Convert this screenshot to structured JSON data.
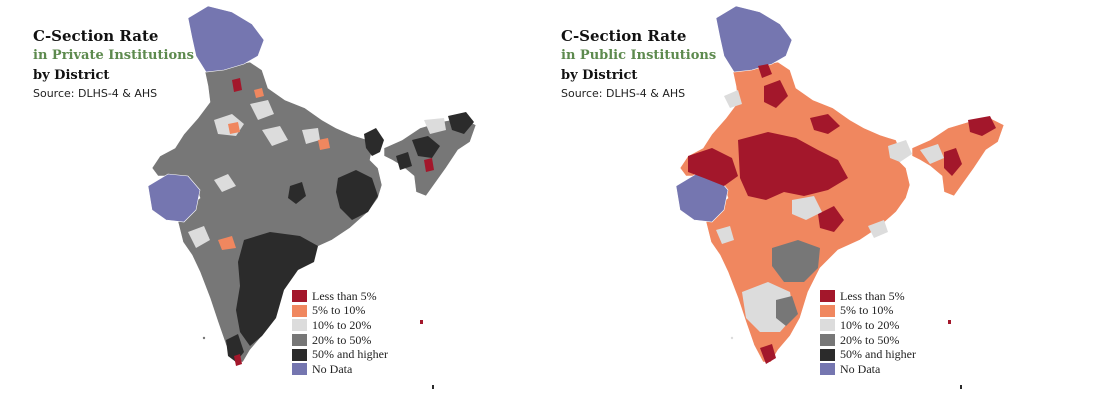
{
  "legend": {
    "items": [
      {
        "label": "Less than 5%",
        "color": "#a3172b"
      },
      {
        "label": "5% to 10%",
        "color": "#f0875f"
      },
      {
        "label": "10% to 20%",
        "color": "#dcdcdc"
      },
      {
        "label": "20% to 50%",
        "color": "#777777"
      },
      {
        "label": "50% and higher",
        "color": "#2b2b2b"
      },
      {
        "label": "No Data",
        "color": "#7576b0"
      }
    ]
  },
  "maps": [
    {
      "title": "C-Section Rate",
      "subtitle": "in Private Institutions",
      "line3": "by District",
      "source": "Source: DLHS-4 & AHS",
      "base_fill": "#777777"
    },
    {
      "title": "C-Section Rate",
      "subtitle": "in Public Institutions",
      "line3": "by District",
      "source": "Source: DLHS-4 & AHS",
      "base_fill": "#f0875f"
    }
  ]
}
